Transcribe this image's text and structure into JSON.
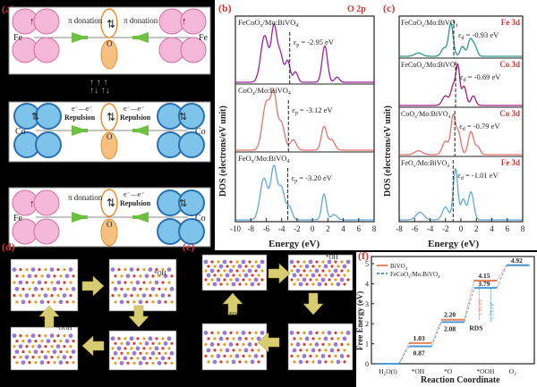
{
  "panels": {
    "a": "(a)",
    "b": "(b)",
    "c": "(c)",
    "d": "(d)",
    "e": "(e)",
    "f": "(f)"
  },
  "panel_a": {
    "row1": {
      "left_metal": "Fe",
      "right_metal": "Fe",
      "center": "O",
      "left_label": "π donation",
      "right_label": "π donation"
    },
    "row2": {
      "left_metal": "Co",
      "right_metal": "Co",
      "center": "O",
      "left_label1": "e⁻—e⁻",
      "left_label2": "Repulsion",
      "right_label1": "e⁻—e⁻",
      "right_label2": "Repulsion"
    },
    "row3": {
      "left_metal": "Fe",
      "right_metal": "Co",
      "center": "O",
      "left_label": "π donation",
      "right_label1": "e⁻—e⁻",
      "right_label2": "Repulsion"
    }
  },
  "panel_b": {
    "ylabel": "DOS (electrons/eV unit)",
    "xlabel": "Energy (eV)",
    "title_tag": "O 2p",
    "xticks": [
      "-10",
      "-8",
      "-6",
      "-4",
      "-2",
      "0",
      "2",
      "4",
      "6",
      "8"
    ],
    "curves": [
      {
        "name": "FeCoOx/Mo:BiVO4",
        "label": "FeCoO",
        "lsub": "x",
        "lrest": "/Mo:BiVO",
        "lsub2": "4",
        "center": "ε",
        "csub": "p",
        "cval": " = -2.95 eV",
        "color": "#a020a0"
      },
      {
        "name": "CoOx/Mo:BiVO4",
        "label": "CoO",
        "lsub": "x",
        "lrest": "/Mo:BiVO",
        "lsub2": "4",
        "center": "ε",
        "csub": "p",
        "cval": " = -3.12 eV",
        "color": "#e5736a"
      },
      {
        "name": "FeOx/Mo:BiVO4",
        "label": "FeO",
        "lsub": "x",
        "lrest": "/Mo:BiVO",
        "lsub2": "4",
        "center": "ε",
        "csub": "p",
        "cval": " = -3.20 eV",
        "color": "#5fa8d8"
      }
    ]
  },
  "panel_c": {
    "ylabel": "DOS (electrons/eV unit)",
    "xlabel": "Energy (eV)",
    "xticks": [
      "-8",
      "-6",
      "-4",
      "-2",
      "0",
      "2",
      "4",
      "6",
      "8"
    ],
    "curves": [
      {
        "label": "FeCoO",
        "lsub": "x",
        "lrest": "/Mo:BiVO",
        "lsub2": "4",
        "tag": "Fe 3d",
        "center": "ε",
        "csub": "d",
        "cval": " = -0.93 eV",
        "color": "#2a9a8a"
      },
      {
        "label": "FeCoO",
        "lsub": "x",
        "lrest": "/Mo:BiVO",
        "lsub2": "4",
        "tag": "Co 3d",
        "center": "ε",
        "csub": "d",
        "cval": " = -0.69 eV",
        "color": "#a0207a"
      },
      {
        "label": "CoO",
        "lsub": "x",
        "lrest": "/Mo:BiVO",
        "lsub2": "4",
        "tag": "Co 3d",
        "center": "ε",
        "csub": "d",
        "cval": " = -0.79 eV",
        "color": "#e5736a"
      },
      {
        "label": "FeO",
        "lsub": "x",
        "lrest": "/Mo:BiVO",
        "lsub2": "4",
        "tag": "Fe 3d",
        "center": "ε",
        "csub": "d",
        "cval": " = -1.01 eV",
        "color": "#5fa8d8"
      }
    ]
  },
  "panel_d": {
    "labels": {
      "oh": "*OH",
      "ooh": "*OOH",
      "o": "*O"
    }
  },
  "panel_e": {
    "labels": {
      "oh": "*OH",
      "ooh": "*OOH",
      "o": "*O"
    }
  },
  "chart_data": {
    "type": "line",
    "title": "",
    "xlabel": "Reaction Coordinate",
    "ylabel": "Free Energy (eV)",
    "categories": [
      "H2O(l)",
      "*OH",
      "*O",
      "*OOH",
      "O2"
    ],
    "cat_labels": [
      {
        "a": "H",
        "sub": "2",
        "b": "O(l)"
      },
      {
        "a": "*OH",
        "sub": "",
        "b": ""
      },
      {
        "a": "*O",
        "sub": "",
        "b": ""
      },
      {
        "a": "*OOH",
        "sub": "",
        "b": ""
      },
      {
        "a": "O",
        "sub": "2",
        "b": ""
      }
    ],
    "ylim": [
      0,
      5
    ],
    "yticks": [
      "0",
      "1",
      "2",
      "3",
      "4",
      "5"
    ],
    "series": [
      {
        "name": "BiVO4",
        "legend": "BiVO",
        "lsub": "4",
        "lrest": "",
        "values": [
          0,
          1.03,
          2.2,
          4.15,
          4.92
        ],
        "color": "#e8825a"
      },
      {
        "name": "FeCoOx/Mo:BiVO4",
        "legend": "FeCoO",
        "lsub": "x",
        "lrest": "/Mo:BiVO",
        "lsub2": "4",
        "values": [
          0,
          0.87,
          2.08,
          3.79,
          4.92
        ],
        "color": "#4a9ad6"
      }
    ],
    "annotations": {
      "v103": "1.03",
      "v087": "0.87",
      "v220": "2.20",
      "v208": "2.08",
      "v415": "4.15",
      "v379": "3.79",
      "v492": "4.92",
      "d195": "1.95 eV",
      "d171": "1.71 eV",
      "rds": "RDS"
    }
  }
}
